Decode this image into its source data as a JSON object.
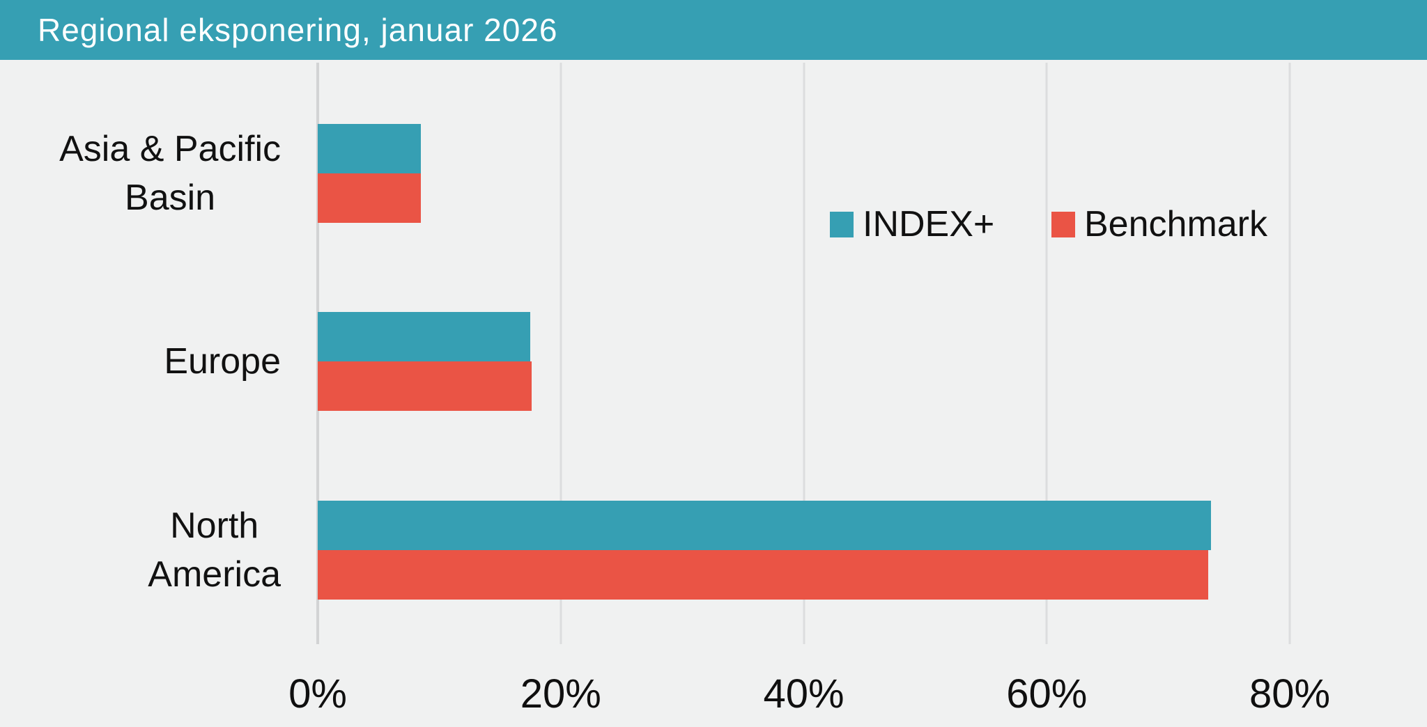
{
  "header": {
    "title": "Regional eksponering, januar 2026",
    "background_color": "#369fb3",
    "text_color": "#ffffff"
  },
  "chart_data": {
    "type": "bar",
    "orientation": "horizontal",
    "title": "Regional eksponering, januar 2026",
    "categories": [
      "Asia & Pacific Basin",
      "Europe",
      "North America"
    ],
    "category_label_lines": [
      [
        "Asia & Pacific",
        "Basin"
      ],
      [
        "Europe"
      ],
      [
        "North",
        "America"
      ]
    ],
    "series": [
      {
        "name": "INDEX+",
        "color": "#369fb3",
        "values": [
          8.5,
          17.5,
          73.5
        ]
      },
      {
        "name": "Benchmark",
        "color": "#ea5445",
        "values": [
          8.5,
          17.6,
          73.3
        ]
      }
    ],
    "xlabel": "",
    "ylabel": "",
    "x_ticks": [
      0,
      20,
      40,
      60,
      80
    ],
    "x_tick_labels": [
      "0%",
      "20%",
      "40%",
      "60%",
      "80%"
    ],
    "xlim": [
      0,
      91
    ],
    "grid": true,
    "legend_position": "inside-upper-right",
    "background_color": "#f0f1f1",
    "gridline_color": "#dcddde"
  }
}
